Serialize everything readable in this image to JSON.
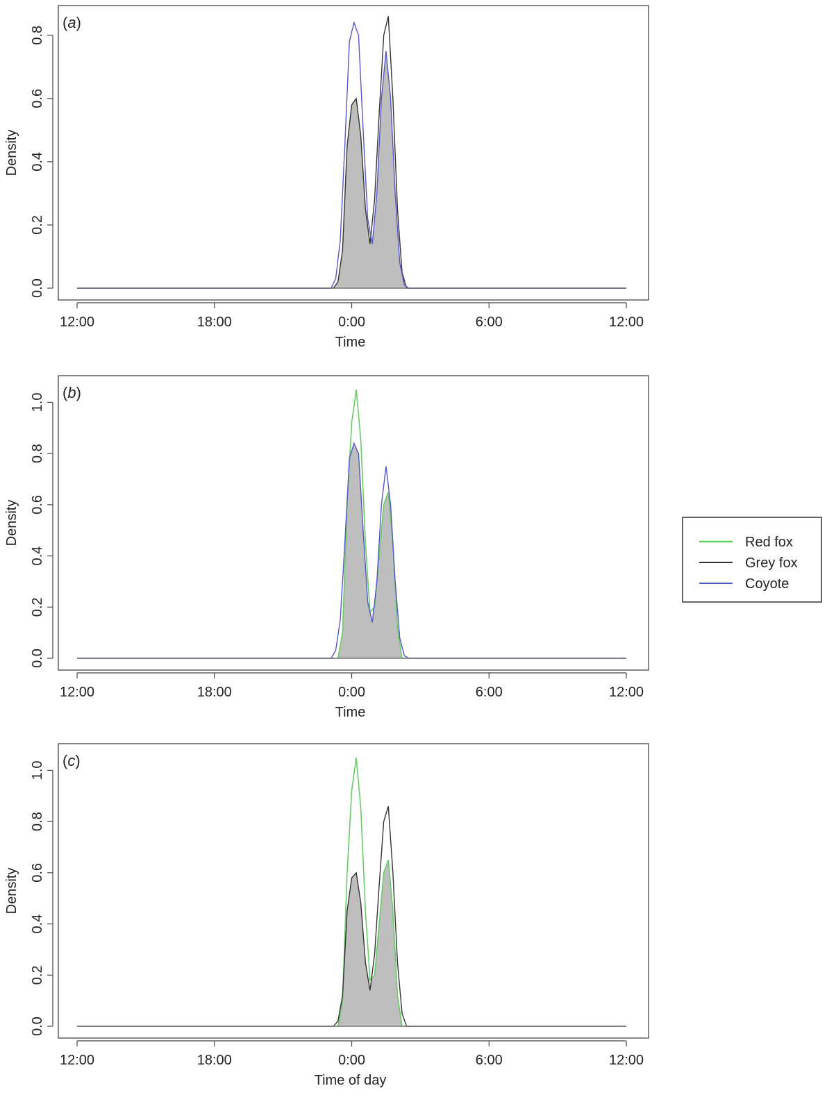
{
  "chart_data": [
    {
      "type": "area",
      "panel_label": "a",
      "xlabel": "Time",
      "ylabel": "Density",
      "xlim": [
        -12,
        12
      ],
      "ylim": [
        0,
        0.85
      ],
      "x_ticks": [
        -12,
        -6,
        0,
        6,
        12
      ],
      "x_tick_labels": [
        "12:00",
        "18:00",
        "0:00",
        "6:00",
        "12:00"
      ],
      "y_ticks": [
        0,
        0.2,
        0.4,
        0.6,
        0.8
      ],
      "y_tick_labels": [
        "0.0",
        "0.2",
        "0.4",
        "0.6",
        "0.8"
      ],
      "overlap_fill": "#bebebe",
      "series": [
        {
          "name": "Grey fox",
          "color": "#333333",
          "x": [
            -12,
            -0.8,
            -0.6,
            -0.4,
            -0.2,
            0,
            0.2,
            0.4,
            0.6,
            0.8,
            1.0,
            1.2,
            1.4,
            1.6,
            1.8,
            2.0,
            2.2,
            2.4,
            12
          ],
          "y": [
            0,
            0,
            0.02,
            0.12,
            0.45,
            0.58,
            0.6,
            0.48,
            0.25,
            0.14,
            0.28,
            0.55,
            0.8,
            0.86,
            0.6,
            0.25,
            0.05,
            0,
            0
          ]
        },
        {
          "name": "Coyote",
          "color": "#5555cc",
          "x": [
            -12,
            -0.9,
            -0.7,
            -0.5,
            -0.3,
            -0.1,
            0.1,
            0.3,
            0.5,
            0.7,
            0.9,
            1.1,
            1.3,
            1.5,
            1.7,
            1.9,
            2.1,
            2.3,
            2.5,
            12
          ],
          "y": [
            0,
            0,
            0.03,
            0.15,
            0.45,
            0.78,
            0.84,
            0.8,
            0.5,
            0.22,
            0.14,
            0.3,
            0.6,
            0.75,
            0.6,
            0.3,
            0.08,
            0.01,
            0,
            0
          ]
        }
      ]
    },
    {
      "type": "area",
      "panel_label": "b",
      "xlabel": "Time",
      "ylabel": "Density",
      "xlim": [
        -12,
        12
      ],
      "ylim": [
        0,
        1.05
      ],
      "x_ticks": [
        -12,
        -6,
        0,
        6,
        12
      ],
      "x_tick_labels": [
        "12:00",
        "18:00",
        "0:00",
        "6:00",
        "12:00"
      ],
      "y_ticks": [
        0,
        0.2,
        0.4,
        0.6,
        0.8,
        1.0
      ],
      "y_tick_labels": [
        "0.0",
        "0.2",
        "0.4",
        "0.6",
        "0.8",
        "1.0"
      ],
      "overlap_fill": "#bebebe",
      "series": [
        {
          "name": "Red fox",
          "color": "#66cc66",
          "x": [
            -12,
            -0.6,
            -0.4,
            -0.2,
            0,
            0.2,
            0.4,
            0.6,
            0.8,
            1.0,
            1.2,
            1.4,
            1.6,
            1.8,
            2.0,
            2.2,
            12
          ],
          "y": [
            0,
            0,
            0.1,
            0.6,
            0.92,
            1.05,
            0.85,
            0.45,
            0.18,
            0.2,
            0.4,
            0.6,
            0.65,
            0.45,
            0.12,
            0,
            0
          ]
        },
        {
          "name": "Coyote",
          "color": "#5555cc",
          "x": [
            -12,
            -0.9,
            -0.7,
            -0.5,
            -0.3,
            -0.1,
            0.1,
            0.3,
            0.5,
            0.7,
            0.9,
            1.1,
            1.3,
            1.5,
            1.7,
            1.9,
            2.1,
            2.3,
            2.5,
            12
          ],
          "y": [
            0,
            0,
            0.03,
            0.15,
            0.45,
            0.78,
            0.84,
            0.8,
            0.5,
            0.22,
            0.14,
            0.3,
            0.6,
            0.75,
            0.6,
            0.3,
            0.08,
            0.01,
            0,
            0
          ]
        }
      ]
    },
    {
      "type": "area",
      "panel_label": "c",
      "xlabel": "Time of day",
      "ylabel": "Density",
      "xlim": [
        -12,
        12
      ],
      "ylim": [
        0,
        1.05
      ],
      "x_ticks": [
        -12,
        -6,
        0,
        6,
        12
      ],
      "x_tick_labels": [
        "12:00",
        "18:00",
        "0:00",
        "6:00",
        "12:00"
      ],
      "y_ticks": [
        0,
        0.2,
        0.4,
        0.6,
        0.8,
        1.0
      ],
      "y_tick_labels": [
        "0.0",
        "0.2",
        "0.4",
        "0.6",
        "0.8",
        "1.0"
      ],
      "overlap_fill": "#bebebe",
      "series": [
        {
          "name": "Red fox",
          "color": "#66cc66",
          "x": [
            -12,
            -0.6,
            -0.4,
            -0.2,
            0,
            0.2,
            0.4,
            0.6,
            0.8,
            1.0,
            1.2,
            1.4,
            1.6,
            1.8,
            2.0,
            2.2,
            12
          ],
          "y": [
            0,
            0,
            0.1,
            0.6,
            0.92,
            1.05,
            0.85,
            0.45,
            0.18,
            0.2,
            0.4,
            0.6,
            0.65,
            0.45,
            0.12,
            0,
            0
          ]
        },
        {
          "name": "Grey fox",
          "color": "#333333",
          "x": [
            -12,
            -0.8,
            -0.6,
            -0.4,
            -0.2,
            0,
            0.2,
            0.4,
            0.6,
            0.8,
            1.0,
            1.2,
            1.4,
            1.6,
            1.8,
            2.0,
            2.2,
            2.4,
            12
          ],
          "y": [
            0,
            0,
            0.02,
            0.12,
            0.45,
            0.58,
            0.6,
            0.48,
            0.25,
            0.14,
            0.28,
            0.55,
            0.8,
            0.86,
            0.6,
            0.25,
            0.05,
            0,
            0
          ]
        }
      ]
    }
  ],
  "legend": {
    "placement": "right",
    "entries": [
      {
        "label": "Red fox",
        "color": "#66cc66"
      },
      {
        "label": "Grey fox",
        "color": "#333333"
      },
      {
        "label": "Coyote",
        "color": "#5555cc"
      }
    ]
  }
}
